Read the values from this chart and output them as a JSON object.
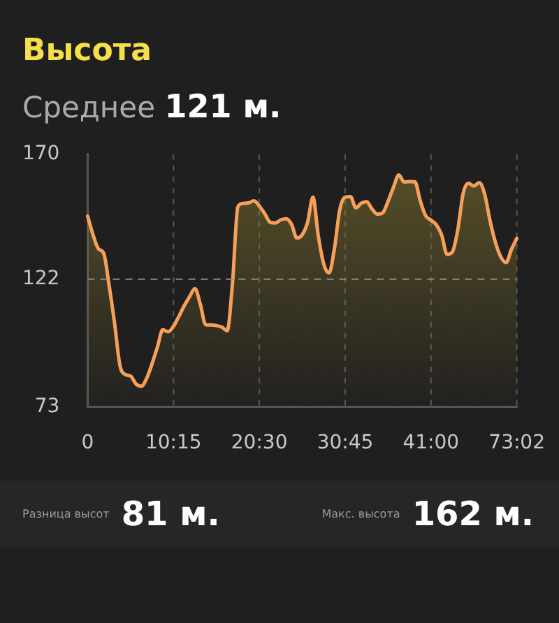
{
  "chart_data": {
    "type": "area",
    "title": "Высота",
    "subtitle": "Среднее 121 м.",
    "annotations": [
      "Разница высот 81 м.",
      "Макс. высота 162 м."
    ],
    "categories": [
      "0",
      null,
      null,
      null,
      null,
      null,
      null,
      null,
      null,
      null,
      null,
      null,
      null,
      null,
      null,
      null,
      "10:15",
      null,
      null,
      null,
      null,
      null,
      null,
      null,
      null,
      null,
      null,
      null,
      null,
      null,
      null,
      null,
      "20:30",
      null,
      null,
      null,
      null,
      null,
      null,
      null,
      null,
      null,
      null,
      null,
      null,
      null,
      null,
      null,
      "30:45",
      null,
      null,
      null,
      null,
      null,
      null,
      null,
      null,
      null,
      null,
      null,
      null,
      null,
      null,
      null,
      "41:00",
      null,
      null,
      null,
      null,
      null,
      null,
      null,
      null,
      null,
      null,
      null,
      null,
      null,
      null,
      null,
      "73:02"
    ],
    "ylim": [
      73,
      170
    ],
    "yticks": [
      73,
      122,
      170
    ],
    "grid": "x",
    "legend": false,
    "marker": "none",
    "ref_lines": [
      {
        "axis": "y",
        "value": 122,
        "color": "#8a8a8a",
        "line_style": "dashed"
      }
    ],
    "series": [
      {
        "color": "#f5a05a",
        "values": [
          146.2,
          139.1,
          133.7,
          131.9,
          119.6,
          105.4,
          89.1,
          85.4,
          84.8,
          81.8,
          80.9,
          83.9,
          89.5,
          95.9,
          102.6,
          101.8,
          103.9,
          107.7,
          111.8,
          115.3,
          118.4,
          112.4,
          104.5,
          104.4,
          104.2,
          103.6,
          102.2,
          120.5,
          149.8,
          151.1,
          151.3,
          152.1,
          150.1,
          147.2,
          143.9,
          143.6,
          144.8,
          145.2,
          143.1,
          137.8,
          139.1,
          143.9,
          153.5,
          138.5,
          127.9,
          124.4,
          133.8,
          148.7,
          153.5,
          153.7,
          149.4,
          151.2,
          151.8,
          149,
          147,
          147.5,
          151.9,
          157.3,
          162,
          159.3,
          159.5,
          159.4,
          152.1,
          146.4,
          144.7,
          142.9,
          138.9,
          131.5,
          132.5,
          141,
          155,
          158.8,
          157.8,
          159.1,
          154.7,
          144.5,
          136.2,
          130.6,
          128.4,
          133.5,
          137.7
        ]
      }
    ]
  }
}
